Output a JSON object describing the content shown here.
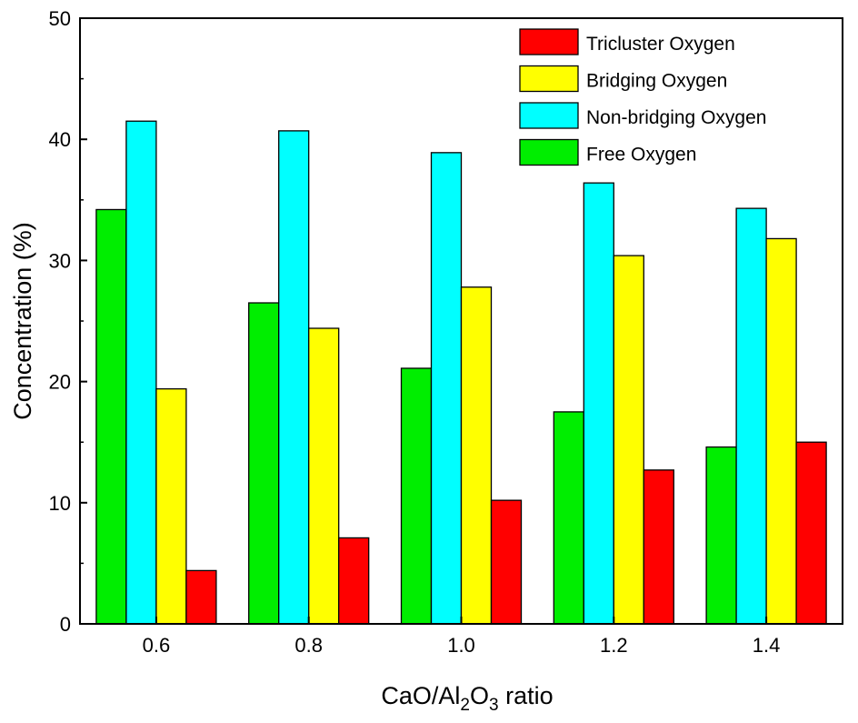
{
  "chart_data": {
    "type": "bar",
    "title": "",
    "xlabel": {
      "prefix": "CaO/Al",
      "sub1": "2",
      "mid": "O",
      "sub2": "3",
      "suffix": " ratio"
    },
    "ylabel": "Concentration (%)",
    "categories": [
      "0.6",
      "0.8",
      "1.0",
      "1.2",
      "1.4"
    ],
    "ylim": [
      0,
      50
    ],
    "yticks": [
      "0",
      "10",
      "20",
      "30",
      "40",
      "50"
    ],
    "grid": false,
    "legend_position": "top-right",
    "series": [
      {
        "name": "Free Oxygen",
        "color": "#00ee00",
        "values": [
          34.2,
          26.5,
          21.1,
          17.5,
          14.6
        ]
      },
      {
        "name": "Non-bridging Oxygen",
        "color": "#00ffff",
        "values": [
          41.5,
          40.7,
          38.9,
          36.4,
          34.3
        ]
      },
      {
        "name": "Bridging Oxygen",
        "color": "#ffff00",
        "values": [
          19.4,
          24.4,
          27.8,
          30.4,
          31.8
        ]
      },
      {
        "name": "Tricluster Oxygen",
        "color": "#ff0000",
        "values": [
          4.4,
          7.1,
          10.2,
          12.7,
          15.0
        ]
      }
    ],
    "legend_order": [
      "Tricluster Oxygen",
      "Bridging Oxygen",
      "Non-bridging Oxygen",
      "Free Oxygen"
    ]
  }
}
